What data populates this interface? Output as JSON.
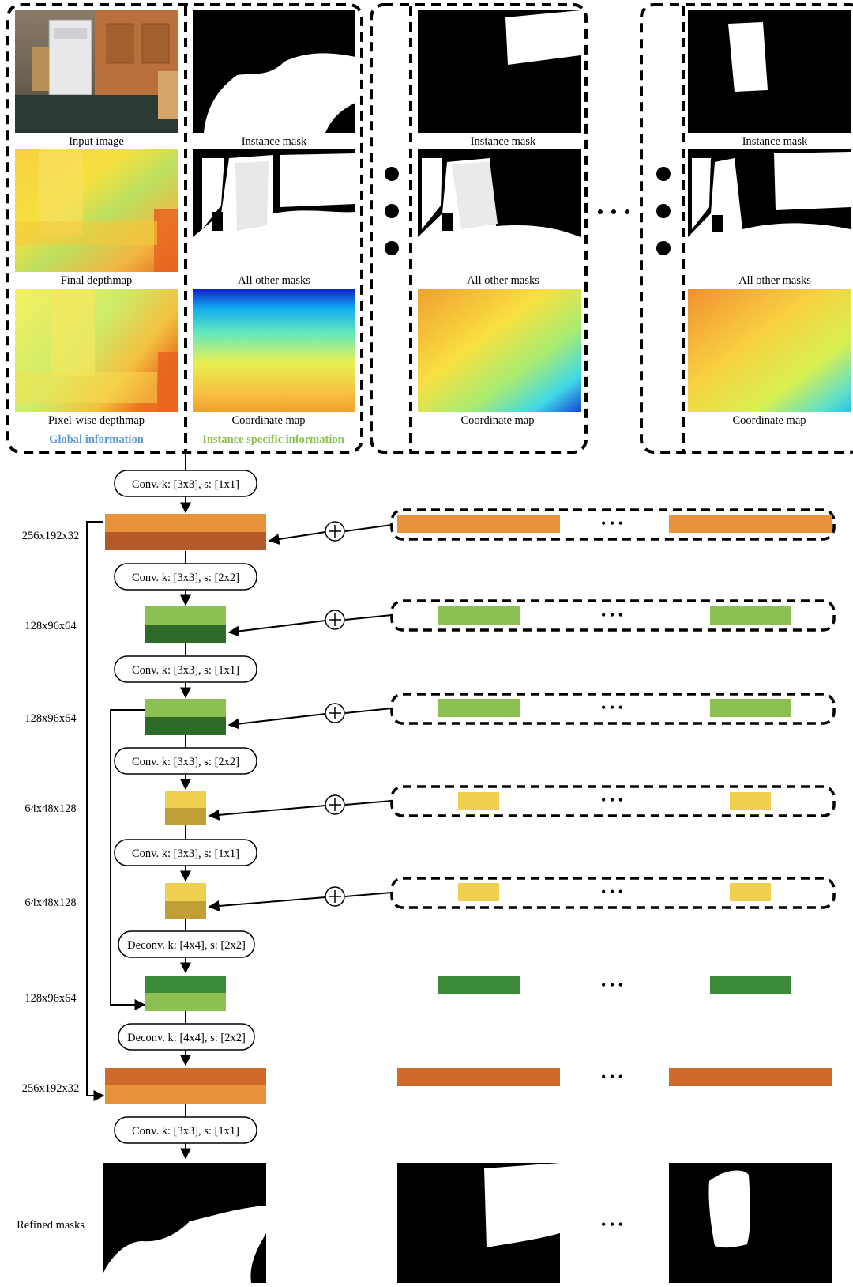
{
  "captions": {
    "input_image": "Input image",
    "final_depthmap": "Final depthmap",
    "pixelwise_depthmap": "Pixel-wise depthmap",
    "instance_mask": "Instance mask",
    "all_other_masks": "All other masks",
    "coordinate_map": "Coordinate map"
  },
  "group_labels": {
    "global": "Global information",
    "instance": "Instance specific information"
  },
  "group_label_colors": {
    "global": "#5b9bd5",
    "instance": "#8cc152"
  },
  "ops": [
    "Conv. k: [3x3], s: [1x1]",
    "Conv. k: [3x3], s: [2x2]",
    "Conv. k: [3x3], s: [1x1]",
    "Conv. k: [3x3], s: [2x2]",
    "Conv. k: [3x3], s: [1x1]",
    "Deconv. k: [4x4], s: [2x2]",
    "Deconv. k: [4x4], s: [2x2]",
    "Conv. k: [3x3], s: [1x1]"
  ],
  "sizes": [
    "256x192x32",
    "128x96x64",
    "128x96x64",
    "64x48x128",
    "64x48x128",
    "128x96x64",
    "256x192x32"
  ],
  "refined_masks_label": "Refined masks",
  "ellipsis": "• • •",
  "colors": {
    "orange_light": "#e8923a",
    "orange_dark": "#b35a28",
    "green_light": "#8cc152",
    "green_dark": "#2e6b2a",
    "yellow_light": "#f0d050",
    "yellow_dark": "#c0a035",
    "deconv_green_top": "#3a8a3a",
    "deconv_orange_top": "#d06a2a",
    "deconv_orange_bottom": "#e8923a"
  }
}
